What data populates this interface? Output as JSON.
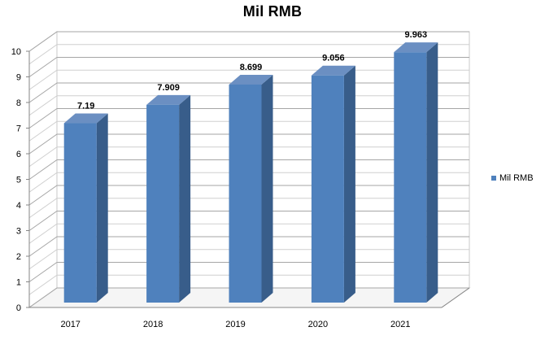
{
  "chart_data": {
    "type": "bar",
    "title": "Mil RMB",
    "categories": [
      "2017",
      "2018",
      "2019",
      "2020",
      "2021"
    ],
    "series": [
      {
        "name": "Mil RMB",
        "values": [
          7.19,
          7.909,
          8.699,
          9.056,
          9.963
        ]
      }
    ],
    "value_labels": [
      "7.19",
      "7.909",
      "8.699",
      "9.056",
      "9.963"
    ],
    "y_ticks": [
      "0",
      "1",
      "2",
      "3",
      "4",
      "5",
      "6",
      "7",
      "8",
      "9",
      "10"
    ],
    "ylim": [
      0,
      10
    ],
    "grid": true,
    "style": "3d",
    "legend_position": "right",
    "colors": {
      "front": "#4f81bd",
      "side": "#385d8a",
      "top": "#6b8fc2"
    }
  }
}
